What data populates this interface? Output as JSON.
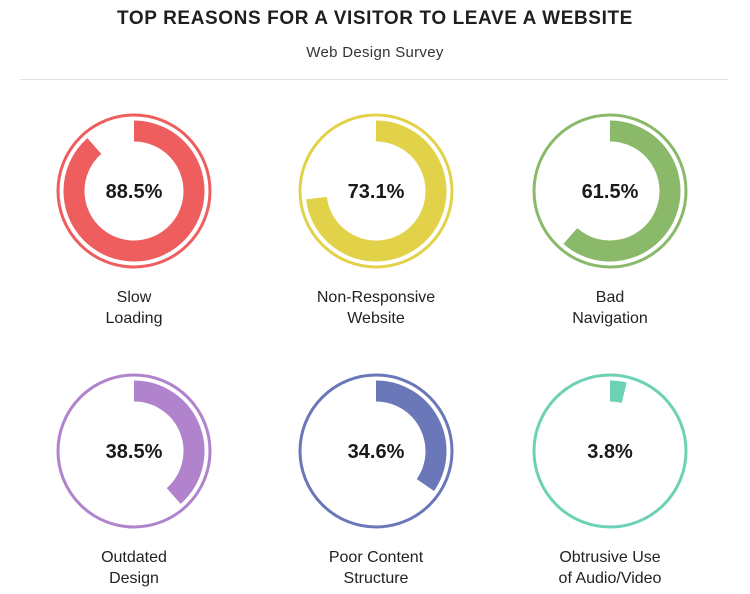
{
  "header": {
    "title": "TOP REASONS FOR A VISITOR TO LEAVE A WEBSITE",
    "subtitle": "Web Design Survey"
  },
  "chart_data": {
    "type": "donut",
    "title": "TOP REASONS FOR A VISITOR TO LEAVE A WEBSITE",
    "subtitle": "Web Design Survey",
    "unit": "%",
    "items": [
      {
        "label_lines": [
          "Slow",
          "Loading"
        ],
        "value": 88.5,
        "value_label": "88.5%",
        "color": "#ee5e5e"
      },
      {
        "label_lines": [
          "Non-Responsive",
          "Website"
        ],
        "value": 73.1,
        "value_label": "73.1%",
        "color": "#e2d24a"
      },
      {
        "label_lines": [
          "Bad",
          "Navigation"
        ],
        "value": 61.5,
        "value_label": "61.5%",
        "color": "#8ab96a"
      },
      {
        "label_lines": [
          "Outdated",
          "Design"
        ],
        "value": 38.5,
        "value_label": "38.5%",
        "color": "#b083cc"
      },
      {
        "label_lines": [
          "Poor Content",
          "Structure"
        ],
        "value": 34.6,
        "value_label": "34.6%",
        "color": "#6a77b8"
      },
      {
        "label_lines": [
          "Obtrusive Use",
          "of Audio/Video"
        ],
        "value": 3.8,
        "value_label": "3.8%",
        "color": "#6cd1b5"
      }
    ]
  }
}
